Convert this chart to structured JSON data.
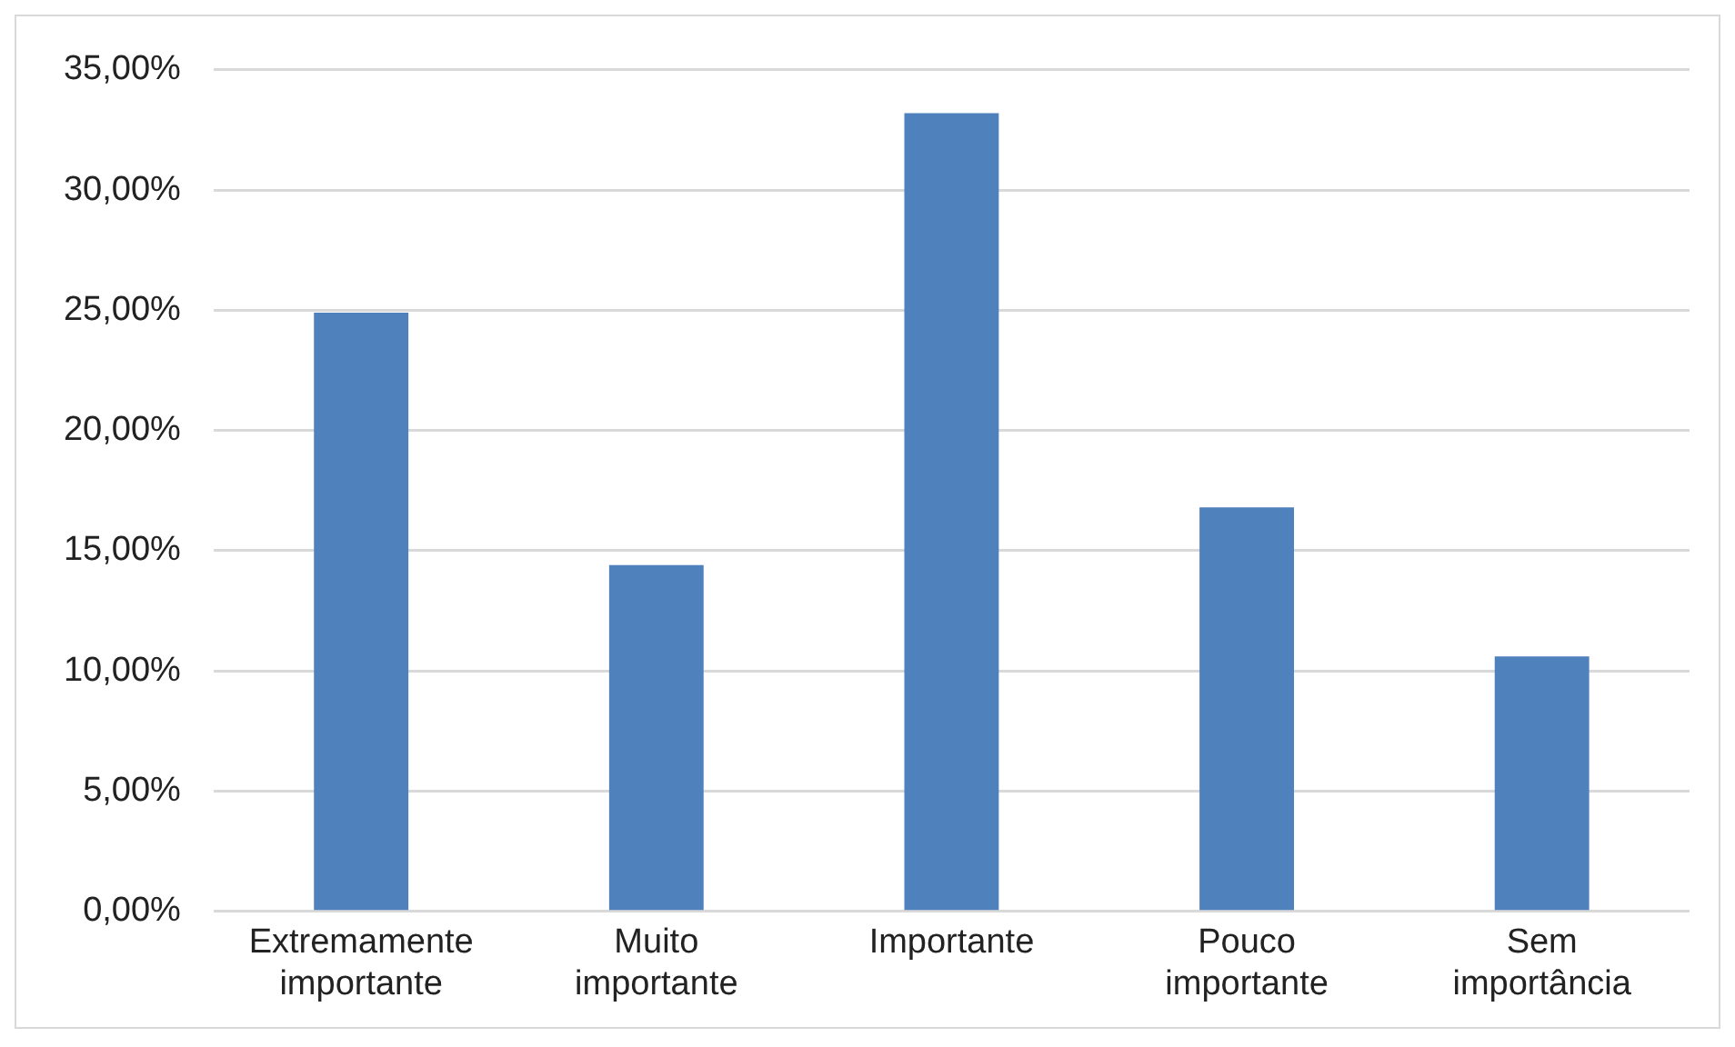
{
  "chart_data": {
    "type": "bar",
    "categories": [
      "Extremamente importante",
      "Muito importante",
      "Importante",
      "Pouco importante",
      "Sem importância"
    ],
    "values": [
      24.9,
      14.4,
      33.2,
      16.8,
      10.6
    ],
    "color": "#4f81bd",
    "ylim": [
      0,
      35
    ],
    "yticks": [
      {
        "value": 0,
        "label": "0,00%"
      },
      {
        "value": 5,
        "label": "5,00%"
      },
      {
        "value": 10,
        "label": "10,00%"
      },
      {
        "value": 15,
        "label": "15,00%"
      },
      {
        "value": 20,
        "label": "20,00%"
      },
      {
        "value": 25,
        "label": "25,00%"
      },
      {
        "value": 30,
        "label": "30,00%"
      },
      {
        "value": 35,
        "label": "35,00%"
      }
    ],
    "grid": "y"
  }
}
